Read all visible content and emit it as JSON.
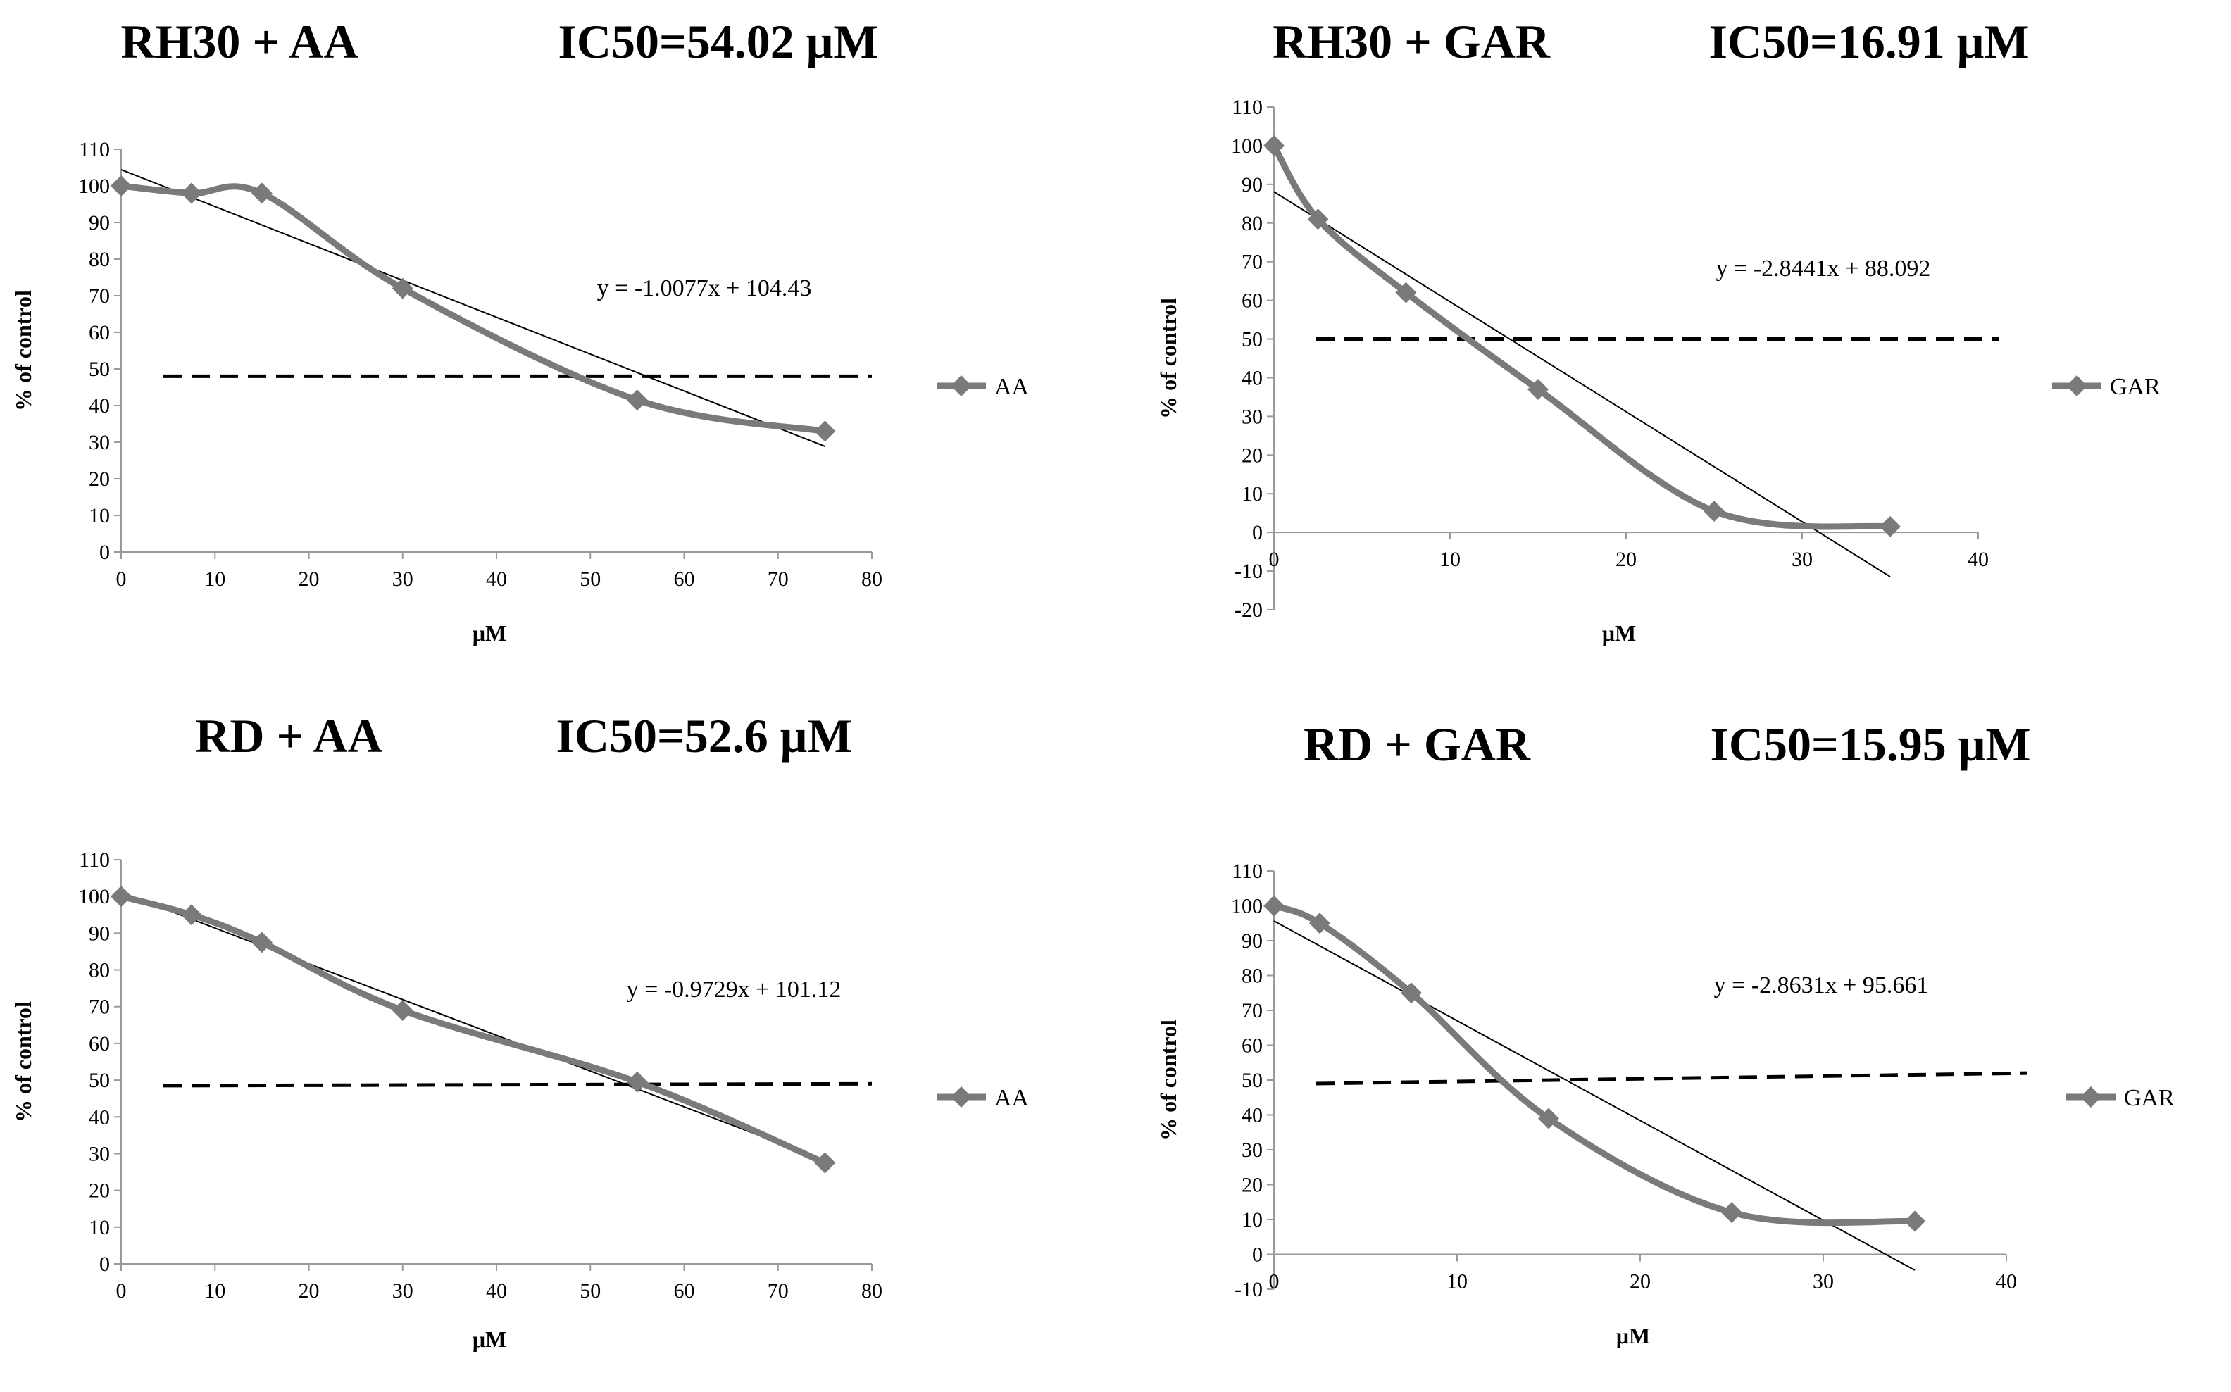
{
  "chart_data": [
    {
      "type": "line",
      "title": "RH30 + AA",
      "ic50_label": "IC50=54.02 μM",
      "xlabel": "μM",
      "ylabel": "% of control",
      "xlim": [
        0,
        80
      ],
      "ylim": [
        0,
        110
      ],
      "xticks": [
        0,
        10,
        20,
        30,
        40,
        50,
        60,
        70,
        80
      ],
      "yticks": [
        0,
        10,
        20,
        30,
        40,
        50,
        60,
        70,
        80,
        90,
        100,
        110
      ],
      "series": [
        {
          "name": "AA",
          "x": [
            0,
            7.5,
            15,
            30,
            55,
            75
          ],
          "y": [
            100,
            98,
            98,
            72,
            41.5,
            33
          ]
        }
      ],
      "trendline": {
        "equation": "y = -1.0077x  + 104.43",
        "slope": -1.0077,
        "intercept": 104.43,
        "x_range": [
          0,
          75
        ]
      },
      "threshold_line": {
        "y_start": 48,
        "y_end": 48
      },
      "legend_position": "right",
      "grid": false,
      "series_color": "#7a7a7a"
    },
    {
      "type": "line",
      "title": "RH30 + GAR",
      "ic50_label": "IC50=16.91 μM",
      "xlabel": "μM",
      "ylabel": "% of control",
      "xlim": [
        0,
        40
      ],
      "ylim": [
        -20,
        110
      ],
      "xticks": [
        0,
        10,
        20,
        30,
        40
      ],
      "yticks": [
        -20,
        -10,
        0,
        10,
        20,
        30,
        40,
        50,
        60,
        70,
        80,
        90,
        100,
        110
      ],
      "series": [
        {
          "name": "GAR",
          "x": [
            0,
            2.5,
            7.5,
            15,
            25,
            35
          ],
          "y": [
            100,
            81,
            62,
            37,
            5.5,
            1.5
          ]
        }
      ],
      "trendline": {
        "equation": "y = -2.8441x  + 88.092",
        "slope": -2.8441,
        "intercept": 88.092,
        "x_range": [
          0,
          35
        ]
      },
      "threshold_line": {
        "y_start": 50,
        "y_end": 50
      },
      "legend_position": "right",
      "grid": false,
      "series_color": "#7a7a7a"
    },
    {
      "type": "line",
      "title": "RD + AA",
      "ic50_label": "IC50=52.6 μM",
      "xlabel": "μM",
      "ylabel": "% of control",
      "xlim": [
        0,
        80
      ],
      "ylim": [
        0,
        110
      ],
      "xticks": [
        0,
        10,
        20,
        30,
        40,
        50,
        60,
        70,
        80
      ],
      "yticks": [
        0,
        10,
        20,
        30,
        40,
        50,
        60,
        70,
        80,
        90,
        100,
        110
      ],
      "series": [
        {
          "name": "AA",
          "x": [
            0,
            7.5,
            15,
            30,
            55,
            75
          ],
          "y": [
            100,
            95,
            87.5,
            69,
            49.5,
            27.5
          ]
        }
      ],
      "trendline": {
        "equation": "y = -0.9729x  + 101.12",
        "slope": -0.9729,
        "intercept": 101.12,
        "x_range": [
          0,
          75
        ]
      },
      "threshold_line": {
        "y_start": 48.5,
        "y_end": 49
      },
      "legend_position": "right",
      "grid": false,
      "series_color": "#7a7a7a"
    },
    {
      "type": "line",
      "title": "RD + GAR",
      "ic50_label": "IC50=15.95 μM",
      "xlabel": "μM",
      "ylabel": "% of control",
      "xlim": [
        0,
        40
      ],
      "ylim": [
        -10,
        110
      ],
      "xticks": [
        0,
        10,
        20,
        30,
        40
      ],
      "yticks": [
        -10,
        0,
        10,
        20,
        30,
        40,
        50,
        60,
        70,
        80,
        90,
        100,
        110
      ],
      "series": [
        {
          "name": "GAR",
          "x": [
            0,
            2.5,
            7.5,
            15,
            25,
            35
          ],
          "y": [
            100,
            95,
            75,
            39,
            12,
            9.5
          ]
        }
      ],
      "trendline": {
        "equation": "y = -2.8631x  + 95.661",
        "slope": -2.8631,
        "intercept": 95.661,
        "x_range": [
          0,
          35
        ]
      },
      "threshold_line": {
        "y_start": 49,
        "y_end": 52
      },
      "legend_position": "right",
      "grid": false,
      "series_color": "#7a7a7a"
    }
  ]
}
